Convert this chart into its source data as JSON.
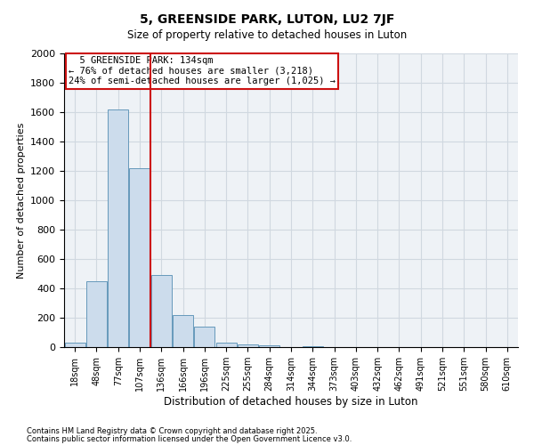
{
  "title": "5, GREENSIDE PARK, LUTON, LU2 7JF",
  "subtitle": "Size of property relative to detached houses in Luton",
  "xlabel": "Distribution of detached houses by size in Luton",
  "ylabel": "Number of detached properties",
  "annotation_line1": "5 GREENSIDE PARK: 134sqm",
  "annotation_line2": "← 76% of detached houses are smaller (3,218)",
  "annotation_line3": "24% of semi-detached houses are larger (1,025) →",
  "categories": [
    "18sqm",
    "48sqm",
    "77sqm",
    "107sqm",
    "136sqm",
    "166sqm",
    "196sqm",
    "225sqm",
    "255sqm",
    "284sqm",
    "314sqm",
    "344sqm",
    "373sqm",
    "403sqm",
    "432sqm",
    "462sqm",
    "491sqm",
    "521sqm",
    "551sqm",
    "580sqm",
    "610sqm"
  ],
  "values": [
    30,
    450,
    1620,
    1220,
    490,
    220,
    140,
    30,
    20,
    10,
    0,
    5,
    0,
    0,
    0,
    0,
    0,
    0,
    0,
    0,
    0
  ],
  "bar_color": "#ccdcec",
  "bar_edge_color": "#6699bb",
  "vertical_line_x": 3.5,
  "vertical_line_color": "#cc1111",
  "annotation_box_color": "#cc1111",
  "ylim": [
    0,
    2000
  ],
  "yticks": [
    0,
    200,
    400,
    600,
    800,
    1000,
    1200,
    1400,
    1600,
    1800,
    2000
  ],
  "grid_color": "#d0d8e0",
  "background_color": "#eef2f6",
  "footer_line1": "Contains HM Land Registry data © Crown copyright and database right 2025.",
  "footer_line2": "Contains public sector information licensed under the Open Government Licence v3.0."
}
